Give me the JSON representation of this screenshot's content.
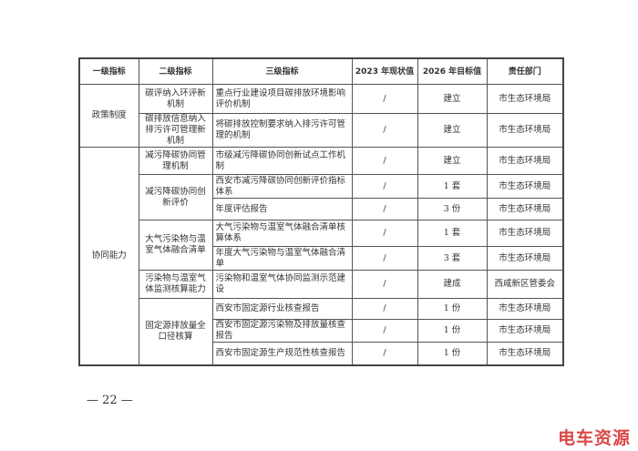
{
  "headers": [
    "一级指标",
    "二级指标",
    "三级指标",
    "2023 年现状值",
    "2026 年目标值",
    "责任部门"
  ],
  "rows": [
    {
      "l1": "政策制度",
      "l2": "碳评纳入环评新机制",
      "l3": "重点行业建设项目碳排放环境影响评价机制",
      "v2023": "/",
      "v2026": "建立",
      "dept": "市生态环境局"
    },
    {
      "l2": "碳排放信息纳入排污许可管理新机制",
      "l3": "将碳排放控制要求纳入排污许可管理的机制",
      "v2023": "/",
      "v2026": "建立",
      "dept": "市生态环境局"
    },
    {
      "l1": "协同能力",
      "l2": "减污降碳协同管理机制",
      "l3": "市级减污降碳协同创新试点工作机制",
      "v2023": "/",
      "v2026": "建立",
      "dept": "市生态环境局"
    },
    {
      "l2": "减污降碳协同创新评价",
      "l3": "西安市减污降碳协同创新评价指标体系",
      "v2023": "/",
      "v2026": "1 套",
      "dept": "市生态环境局"
    },
    {
      "l3": "年度评估报告",
      "v2023": "/",
      "v2026": "3 份",
      "dept": "市生态环境局"
    },
    {
      "l2": "大气污染物与温室气体融合清单",
      "l3": "大气污染物与温室气体融合清单核算体系",
      "v2023": "/",
      "v2026": "1 套",
      "dept": "市生态环境局"
    },
    {
      "l3": "年度大气污染物与温室气体融合清单",
      "v2023": "/",
      "v2026": "3 套",
      "dept": "市生态环境局"
    },
    {
      "l2": "污染物与温室气体监测核算能力",
      "l3": "污染物和温室气体协同监测示范建设",
      "v2023": "/",
      "v2026": "建成",
      "dept": "西咸新区管委会"
    },
    {
      "l2": "固定源排放量全口径核算",
      "l3": "西安市固定源行业核查报告",
      "v2023": "/",
      "v2026": "1 份",
      "dept": "市生态环境局"
    },
    {
      "l3": "西安市固定源污染物及排放量核查报告",
      "v2023": "/",
      "v2026": "1 份",
      "dept": "市生态环境局"
    },
    {
      "l3": "西安市固定源生产规范性核查报告",
      "v2023": "/",
      "v2026": "1 份",
      "dept": "市生态环境局"
    }
  ],
  "footer": {
    "page": "— 22 —"
  },
  "watermark": "电车资源"
}
